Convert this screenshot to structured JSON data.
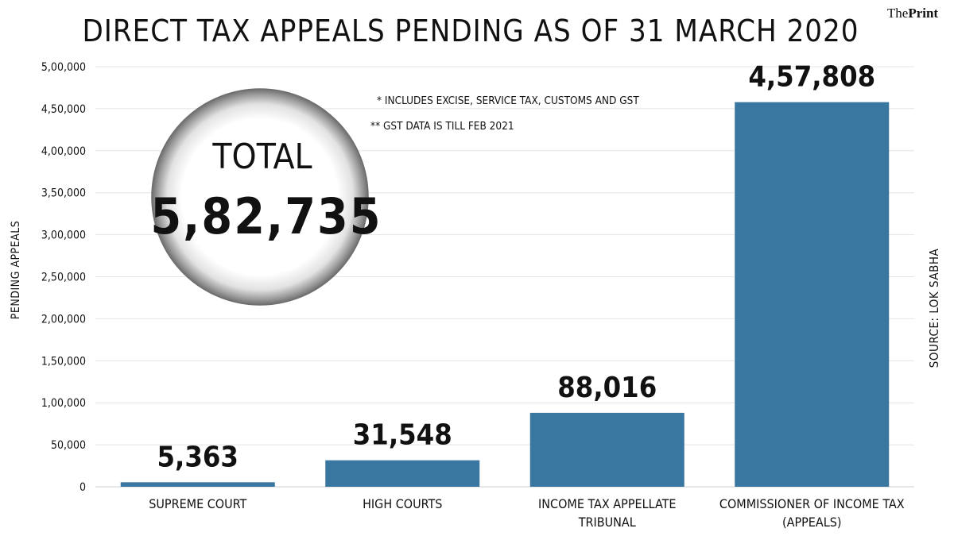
{
  "title": "DIRECT TAX APPEALS PENDING AS OF 31 MARCH 2020",
  "brand": {
    "the": "The",
    "print": "Print"
  },
  "total": {
    "label": "TOTAL",
    "value": "5,82,735"
  },
  "notes": [
    "* INCLUDES EXCISE, SERVICE TAX, CUSTOMS AND GST",
    "** GST DATA IS TILL FEB 2021"
  ],
  "source": "SOURCE: LOK SABHA",
  "colors": {
    "bar": "#3a77a0",
    "bubble_edge": "#7a7a7a"
  },
  "chart_data": {
    "type": "bar",
    "title": "DIRECT TAX APPEALS PENDING AS OF 31 MARCH 2020",
    "ylabel": "PENDING APPEALS",
    "xlabel": "",
    "ylim": [
      0,
      500000
    ],
    "grid": true,
    "yticks": [
      0,
      50000,
      100000,
      150000,
      200000,
      250000,
      300000,
      350000,
      400000,
      450000,
      500000
    ],
    "ytick_labels": [
      "0",
      "50,000",
      "1,00,000",
      "1,50,000",
      "2,00,000",
      "2,50,000",
      "3,00,000",
      "3,50,000",
      "4,00,000",
      "4,50,000",
      "5,00,000"
    ],
    "categories": [
      [
        "SUPREME COURT"
      ],
      [
        "HIGH COURTS"
      ],
      [
        "INCOME TAX APPELLATE",
        "TRIBUNAL"
      ],
      [
        "COMMISSIONER OF INCOME TAX",
        "(APPEALS)"
      ]
    ],
    "values": [
      5363,
      31548,
      88016,
      457808
    ],
    "value_labels": [
      "5,363",
      "31,548",
      "88,016",
      "4,57,808"
    ]
  }
}
